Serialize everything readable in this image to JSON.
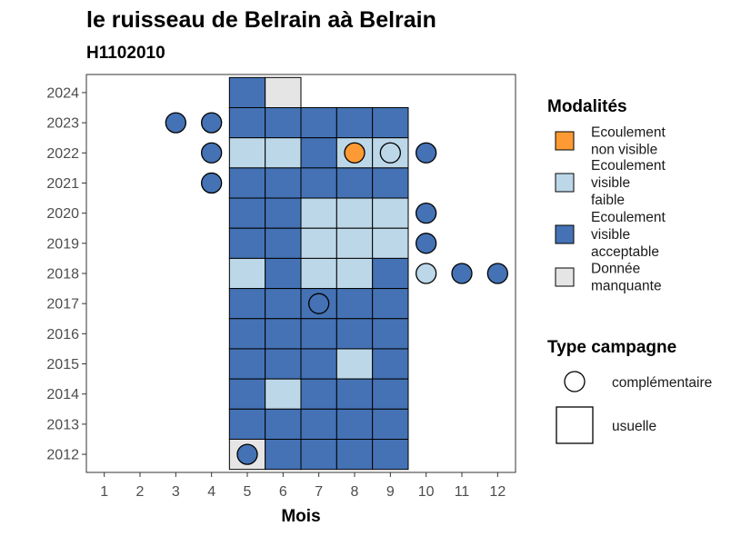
{
  "chart_data": {
    "type": "heatmap",
    "title": "le ruisseau de Belrain aà Belrain",
    "subtitle": "H1102010",
    "xlabel": "Mois",
    "ylabel": "",
    "x_ticks": [
      "1",
      "2",
      "3",
      "4",
      "5",
      "6",
      "7",
      "8",
      "9",
      "10",
      "11",
      "12"
    ],
    "y_ticks": [
      "2012",
      "2013",
      "2014",
      "2015",
      "2016",
      "2017",
      "2018",
      "2019",
      "2020",
      "2021",
      "2022",
      "2023",
      "2024"
    ],
    "xlim": [
      0.5,
      12.5
    ],
    "ylim": [
      2011.4,
      2024.6
    ],
    "grid": false,
    "colors": {
      "Ecoulement non visible": "#fd9a33",
      "Ecoulement visible faible": "#bcd7e8",
      "Ecoulement visible acceptable": "#4472b4",
      "Donnée manquante": "#e5e5e5"
    },
    "usuelle": [
      {
        "year": 2024,
        "month": 5,
        "modalite": "Ecoulement visible acceptable"
      },
      {
        "year": 2024,
        "month": 6,
        "modalite": "Donnée manquante"
      },
      {
        "year": 2023,
        "month": 5,
        "modalite": "Ecoulement visible acceptable"
      },
      {
        "year": 2023,
        "month": 6,
        "modalite": "Ecoulement visible acceptable"
      },
      {
        "year": 2023,
        "month": 7,
        "modalite": "Ecoulement visible acceptable"
      },
      {
        "year": 2023,
        "month": 8,
        "modalite": "Ecoulement visible acceptable"
      },
      {
        "year": 2023,
        "month": 9,
        "modalite": "Ecoulement visible acceptable"
      },
      {
        "year": 2022,
        "month": 5,
        "modalite": "Ecoulement visible faible"
      },
      {
        "year": 2022,
        "month": 6,
        "modalite": "Ecoulement visible faible"
      },
      {
        "year": 2022,
        "month": 7,
        "modalite": "Ecoulement visible acceptable"
      },
      {
        "year": 2022,
        "month": 8,
        "modalite": "Ecoulement visible faible"
      },
      {
        "year": 2022,
        "month": 9,
        "modalite": "Ecoulement visible faible"
      },
      {
        "year": 2021,
        "month": 5,
        "modalite": "Ecoulement visible acceptable"
      },
      {
        "year": 2021,
        "month": 6,
        "modalite": "Ecoulement visible acceptable"
      },
      {
        "year": 2021,
        "month": 7,
        "modalite": "Ecoulement visible acceptable"
      },
      {
        "year": 2021,
        "month": 8,
        "modalite": "Ecoulement visible acceptable"
      },
      {
        "year": 2021,
        "month": 9,
        "modalite": "Ecoulement visible acceptable"
      },
      {
        "year": 2020,
        "month": 5,
        "modalite": "Ecoulement visible acceptable"
      },
      {
        "year": 2020,
        "month": 6,
        "modalite": "Ecoulement visible acceptable"
      },
      {
        "year": 2020,
        "month": 7,
        "modalite": "Ecoulement visible faible"
      },
      {
        "year": 2020,
        "month": 8,
        "modalite": "Ecoulement visible faible"
      },
      {
        "year": 2020,
        "month": 9,
        "modalite": "Ecoulement visible faible"
      },
      {
        "year": 2019,
        "month": 5,
        "modalite": "Ecoulement visible acceptable"
      },
      {
        "year": 2019,
        "month": 6,
        "modalite": "Ecoulement visible acceptable"
      },
      {
        "year": 2019,
        "month": 7,
        "modalite": "Ecoulement visible faible"
      },
      {
        "year": 2019,
        "month": 8,
        "modalite": "Ecoulement visible faible"
      },
      {
        "year": 2019,
        "month": 9,
        "modalite": "Ecoulement visible faible"
      },
      {
        "year": 2018,
        "month": 5,
        "modalite": "Ecoulement visible faible"
      },
      {
        "year": 2018,
        "month": 6,
        "modalite": "Ecoulement visible acceptable"
      },
      {
        "year": 2018,
        "month": 7,
        "modalite": "Ecoulement visible faible"
      },
      {
        "year": 2018,
        "month": 8,
        "modalite": "Ecoulement visible faible"
      },
      {
        "year": 2018,
        "month": 9,
        "modalite": "Ecoulement visible acceptable"
      },
      {
        "year": 2017,
        "month": 5,
        "modalite": "Ecoulement visible acceptable"
      },
      {
        "year": 2017,
        "month": 6,
        "modalite": "Ecoulement visible acceptable"
      },
      {
        "year": 2017,
        "month": 7,
        "modalite": "Ecoulement visible acceptable"
      },
      {
        "year": 2017,
        "month": 8,
        "modalite": "Ecoulement visible acceptable"
      },
      {
        "year": 2017,
        "month": 9,
        "modalite": "Ecoulement visible acceptable"
      },
      {
        "year": 2016,
        "month": 5,
        "modalite": "Ecoulement visible acceptable"
      },
      {
        "year": 2016,
        "month": 6,
        "modalite": "Ecoulement visible acceptable"
      },
      {
        "year": 2016,
        "month": 7,
        "modalite": "Ecoulement visible acceptable"
      },
      {
        "year": 2016,
        "month": 8,
        "modalite": "Ecoulement visible acceptable"
      },
      {
        "year": 2016,
        "month": 9,
        "modalite": "Ecoulement visible acceptable"
      },
      {
        "year": 2015,
        "month": 5,
        "modalite": "Ecoulement visible acceptable"
      },
      {
        "year": 2015,
        "month": 6,
        "modalite": "Ecoulement visible acceptable"
      },
      {
        "year": 2015,
        "month": 7,
        "modalite": "Ecoulement visible acceptable"
      },
      {
        "year": 2015,
        "month": 8,
        "modalite": "Ecoulement visible faible"
      },
      {
        "year": 2015,
        "month": 9,
        "modalite": "Ecoulement visible acceptable"
      },
      {
        "year": 2014,
        "month": 5,
        "modalite": "Ecoulement visible acceptable"
      },
      {
        "year": 2014,
        "month": 6,
        "modalite": "Ecoulement visible faible"
      },
      {
        "year": 2014,
        "month": 7,
        "modalite": "Ecoulement visible acceptable"
      },
      {
        "year": 2014,
        "month": 8,
        "modalite": "Ecoulement visible acceptable"
      },
      {
        "year": 2014,
        "month": 9,
        "modalite": "Ecoulement visible acceptable"
      },
      {
        "year": 2013,
        "month": 5,
        "modalite": "Ecoulement visible acceptable"
      },
      {
        "year": 2013,
        "month": 6,
        "modalite": "Ecoulement visible acceptable"
      },
      {
        "year": 2013,
        "month": 7,
        "modalite": "Ecoulement visible acceptable"
      },
      {
        "year": 2013,
        "month": 8,
        "modalite": "Ecoulement visible acceptable"
      },
      {
        "year": 2013,
        "month": 9,
        "modalite": "Ecoulement visible acceptable"
      },
      {
        "year": 2012,
        "month": 5,
        "modalite": "Donnée manquante"
      },
      {
        "year": 2012,
        "month": 6,
        "modalite": "Ecoulement visible acceptable"
      },
      {
        "year": 2012,
        "month": 7,
        "modalite": "Ecoulement visible acceptable"
      },
      {
        "year": 2012,
        "month": 8,
        "modalite": "Ecoulement visible acceptable"
      },
      {
        "year": 2012,
        "month": 9,
        "modalite": "Ecoulement visible acceptable"
      }
    ],
    "complementaire": [
      {
        "year": 2023,
        "month": 3,
        "modalite": "Ecoulement visible acceptable"
      },
      {
        "year": 2023,
        "month": 4,
        "modalite": "Ecoulement visible acceptable"
      },
      {
        "year": 2022,
        "month": 4,
        "modalite": "Ecoulement visible acceptable"
      },
      {
        "year": 2022,
        "month": 8,
        "modalite": "Ecoulement non visible"
      },
      {
        "year": 2022,
        "month": 9,
        "modalite": "Ecoulement visible faible"
      },
      {
        "year": 2022,
        "month": 10,
        "modalite": "Ecoulement visible acceptable"
      },
      {
        "year": 2021,
        "month": 4,
        "modalite": "Ecoulement visible acceptable"
      },
      {
        "year": 2020,
        "month": 10,
        "modalite": "Ecoulement visible acceptable"
      },
      {
        "year": 2019,
        "month": 10,
        "modalite": "Ecoulement visible acceptable"
      },
      {
        "year": 2018,
        "month": 10,
        "modalite": "Ecoulement visible faible"
      },
      {
        "year": 2018,
        "month": 11,
        "modalite": "Ecoulement visible acceptable"
      },
      {
        "year": 2018,
        "month": 12,
        "modalite": "Ecoulement visible acceptable"
      },
      {
        "year": 2017,
        "month": 7,
        "modalite": "Ecoulement visible acceptable"
      },
      {
        "year": 2012,
        "month": 5,
        "modalite": "Ecoulement visible acceptable"
      }
    ],
    "legend": {
      "placement": "right",
      "modalites_title": "Modalités",
      "modalites": [
        {
          "key": "Ecoulement non visible",
          "lines": [
            "Ecoulement",
            "non visible"
          ]
        },
        {
          "key": "Ecoulement visible faible",
          "lines": [
            "Ecoulement",
            "visible",
            "faible"
          ]
        },
        {
          "key": "Ecoulement visible acceptable",
          "lines": [
            "Ecoulement",
            "visible",
            "acceptable"
          ]
        },
        {
          "key": "Donnée manquante",
          "lines": [
            "Donnée",
            "manquante"
          ]
        }
      ],
      "campagne_title": "Type campagne",
      "campagne": [
        {
          "key": "complementaire",
          "label": "complémentaire"
        },
        {
          "key": "usuelle",
          "label": "usuelle"
        }
      ]
    }
  }
}
